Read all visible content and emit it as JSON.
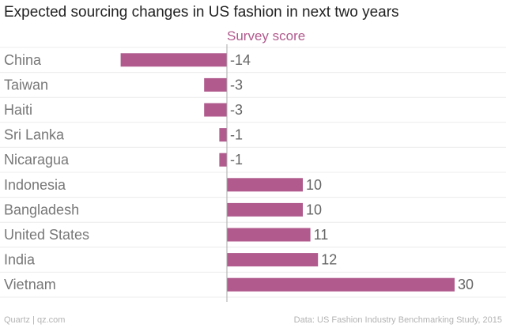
{
  "chart_data": {
    "type": "bar",
    "orientation": "horizontal",
    "title": "Expected sourcing changes in US fashion in next two years",
    "subtitle": "Survey score",
    "categories": [
      "China",
      "Taiwan",
      "Haiti",
      "Sri Lanka",
      "Nicaragua",
      "Indonesia",
      "Bangladesh",
      "United States",
      "India",
      "Vietnam"
    ],
    "values": [
      -14,
      -3,
      -3,
      -1,
      -1,
      10,
      10,
      11,
      12,
      30
    ],
    "value_labels": [
      "-14",
      "-3",
      "-3",
      "-1",
      "-1",
      "10",
      "10",
      "11",
      "12",
      "30"
    ],
    "xlim": [
      -20.8,
      30
    ],
    "grid": true,
    "legend": "none"
  },
  "colors": {
    "bar": "#b05a8d",
    "subtitle": "#b05a8d",
    "category_label": "#777777",
    "value_label": "#666666",
    "grid": "#ececec",
    "axis": "#aaaaaa"
  },
  "footer": {
    "source_left": "Quartz | qz.com",
    "source_right": "Data: US Fashion Industry Benchmarking Study, 2015"
  }
}
